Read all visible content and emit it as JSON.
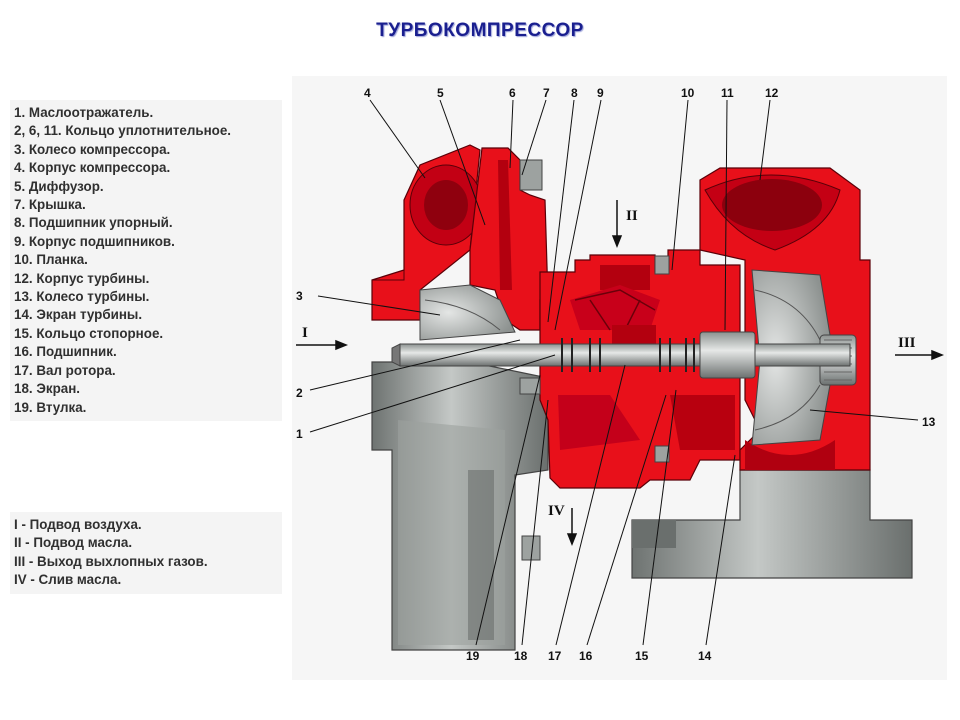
{
  "title": "ТУРБОКОМПРЕССОР",
  "legend_parts": [
    "1. Маслоотражатель.",
    "2, 6, 11. Кольцо уплотнительное.",
    "3. Колесо компрессора.",
    "4. Корпус компрессора.",
    "5. Диффузор.",
    "7. Крышка.",
    "8. Подшипник упорный.",
    "9. Корпус подшипников.",
    "10. Планка.",
    "12. Корпус турбины.",
    "13. Колесо турбины.",
    "14. Экран турбины.",
    "15. Кольцо стопорное.",
    "16. Подшипник.",
    "17. Вал ротора.",
    "18. Экран.",
    "19. Втулка."
  ],
  "legend_flows": [
    "I - Подвод воздуха.",
    "II - Подвод масла.",
    "III - Выход выхлопных газов.",
    "IV - Слив масла."
  ],
  "callouts": {
    "n1": "1",
    "n2": "2",
    "n3": "3",
    "n4": "4",
    "n5": "5",
    "n6": "6",
    "n7": "7",
    "n8": "8",
    "n9": "9",
    "n10": "10",
    "n11": "11",
    "n12": "12",
    "n13": "13",
    "n14": "14",
    "n15": "15",
    "n16": "16",
    "n17": "17",
    "n18": "18",
    "n19": "19"
  },
  "flows": {
    "I": "I",
    "II": "II",
    "III": "III",
    "IV": "IV"
  },
  "colors": {
    "housing": "#e8101a",
    "dark_red": "#b00010",
    "steel": "#8a8f8d",
    "title": "#1a1f8f"
  }
}
